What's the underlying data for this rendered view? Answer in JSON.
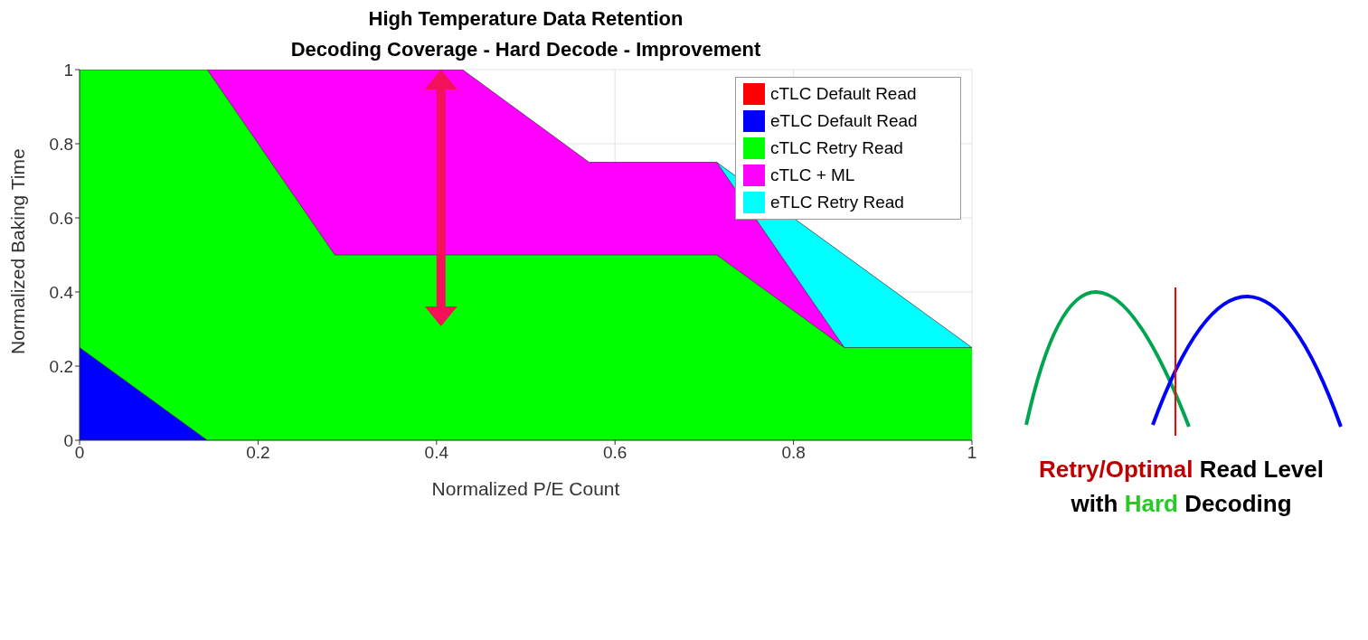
{
  "chart_data": {
    "type": "area",
    "title": "High Temperature Data Retention",
    "subtitle": "Decoding Coverage - Hard Decode - Improvement",
    "xlabel": "Normalized P/E Count",
    "ylabel": "Normalized Baking Time",
    "series": [
      {
        "name": "cTLC Default Read",
        "color": "#ff0000"
      },
      {
        "name": "eTLC Default Read",
        "color": "#0000ff",
        "x": [
          0,
          0.143
        ],
        "values": [
          0.25,
          0
        ]
      },
      {
        "name": "cTLC Retry Read",
        "color": "#00ff00",
        "x": [
          0,
          0.143,
          0.286,
          0.714,
          0.857,
          1
        ],
        "values": [
          1,
          1,
          0.5,
          0.5,
          0.25,
          0.25
        ]
      },
      {
        "name": "cTLC + ML",
        "color": "#ff00ff",
        "x": [
          0.143,
          0.429,
          0.571,
          0.714,
          0.857
        ],
        "values": [
          1,
          1,
          0.75,
          0.75,
          0.25
        ]
      },
      {
        "name": "eTLC Retry Read",
        "color": "#00ffff",
        "x": [
          0.714,
          1
        ],
        "values": [
          0.75,
          0.25
        ]
      }
    ],
    "xlim": [
      0,
      1
    ],
    "xticks": [
      0,
      0.2,
      0.4,
      0.6,
      0.8,
      1
    ],
    "ylim": [
      0,
      1
    ],
    "yticks": [
      0,
      0.2,
      0.4,
      0.6,
      0.8,
      1
    ],
    "grid": true,
    "legend": "top right",
    "annotations": [
      "Retry/Optimal Read Level with Hard Decoding"
    ]
  }
}
